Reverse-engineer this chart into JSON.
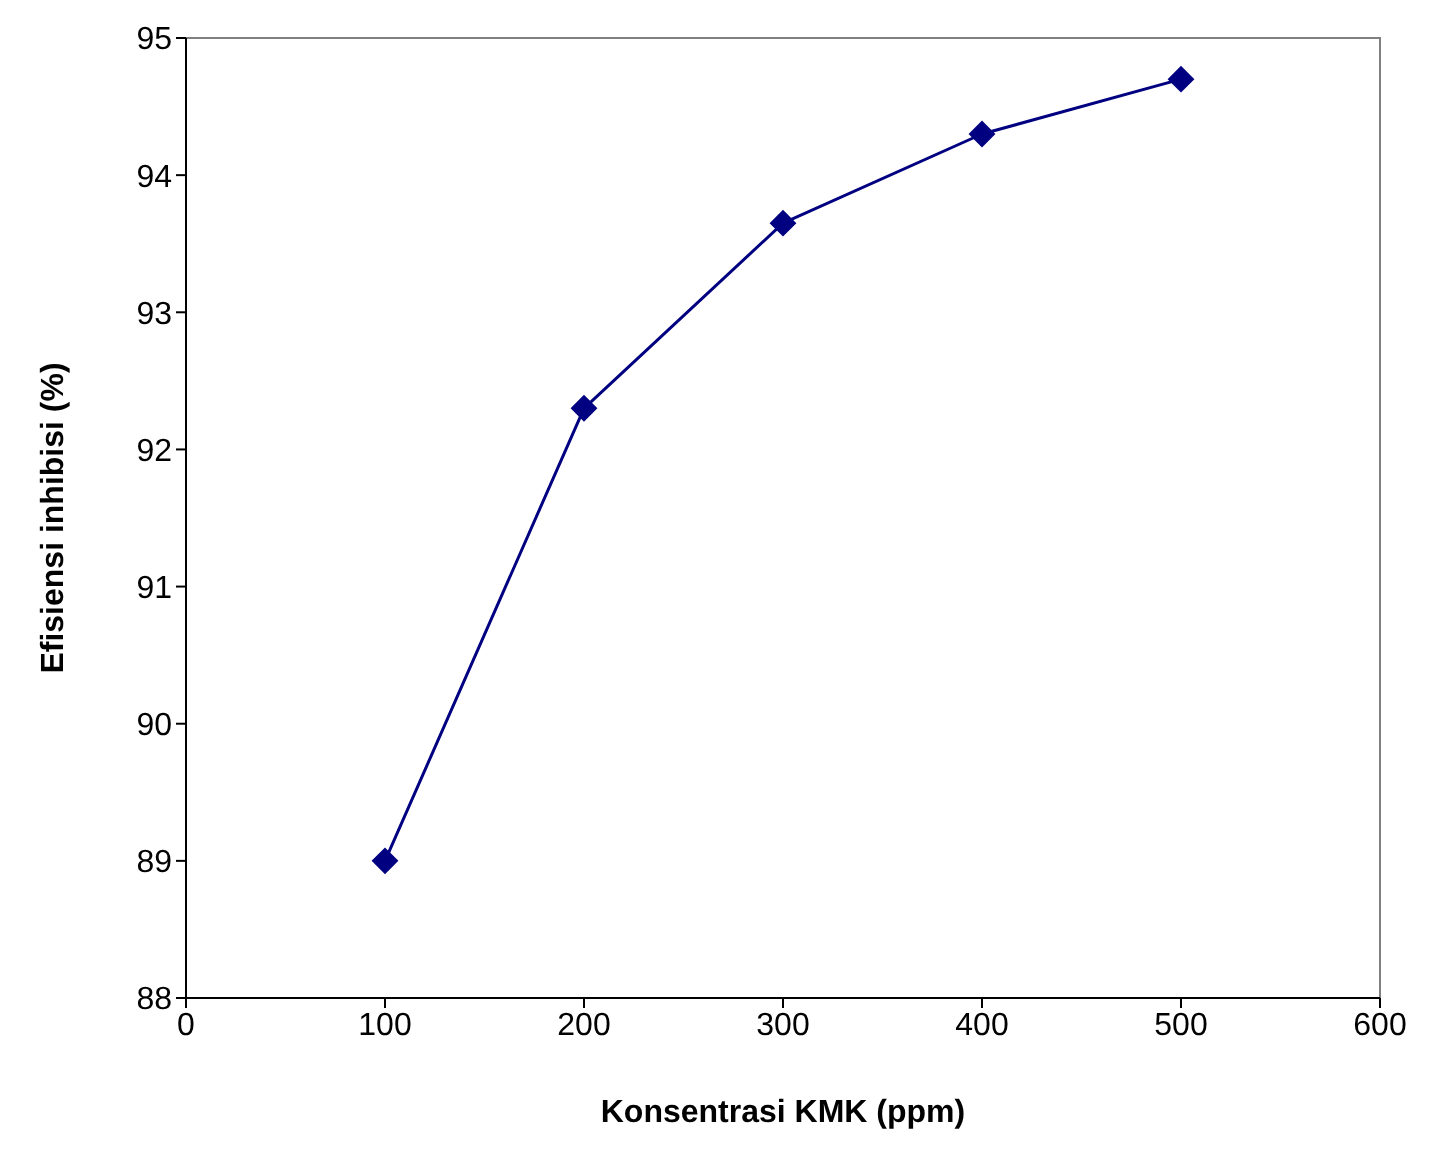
{
  "chart_data": {
    "type": "line",
    "xlabel": "Konsentrasi KMK (ppm)",
    "ylabel": "Efisiensi inhibisi (%)",
    "x": [
      100,
      200,
      300,
      400,
      500
    ],
    "series": [
      {
        "color": "#000080",
        "values": [
          89.0,
          92.3,
          93.65,
          94.3,
          94.7
        ]
      }
    ],
    "xlim": [
      0,
      600
    ],
    "xticks": [
      0,
      100,
      200,
      300,
      400,
      500,
      600
    ],
    "ylim": [
      88,
      95
    ],
    "yticks": [
      88,
      89,
      90,
      91,
      92,
      93,
      94,
      95
    ],
    "grid": false,
    "legend": false,
    "marker": "diamond",
    "line_style": "solid"
  }
}
